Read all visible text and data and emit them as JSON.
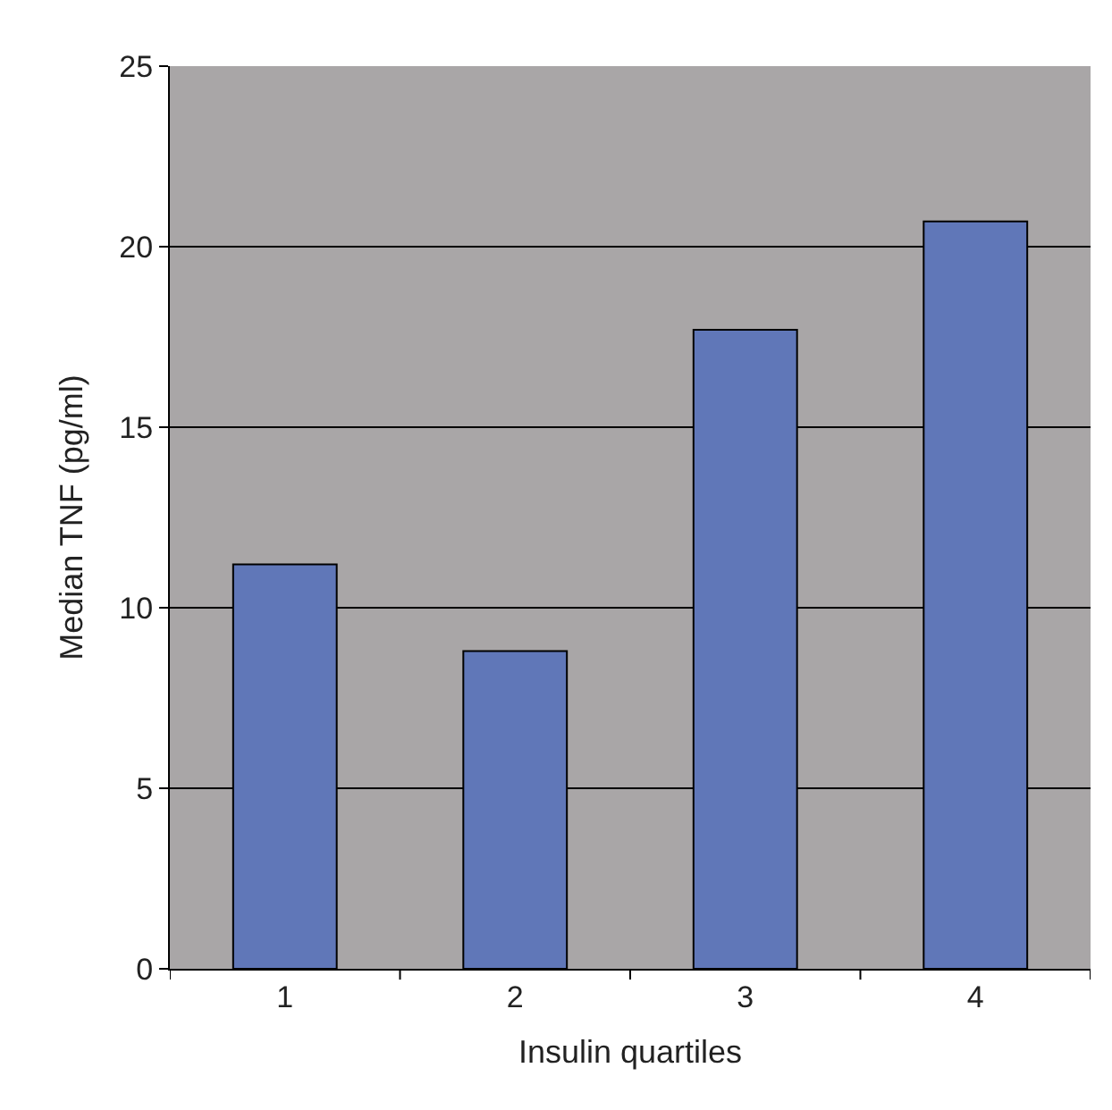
{
  "chart_data": {
    "type": "bar",
    "xlabel": "Insulin quartiles",
    "ylabel": "Median TNF (pg/ml)",
    "categories": [
      "1",
      "2",
      "3",
      "4"
    ],
    "values": [
      11.2,
      8.8,
      17.7,
      20.7
    ],
    "color": "#6077b8",
    "ylim": [
      0,
      25
    ],
    "yticks": [
      0,
      5,
      10,
      15,
      20,
      25
    ],
    "grid": "y",
    "legend": false
  }
}
